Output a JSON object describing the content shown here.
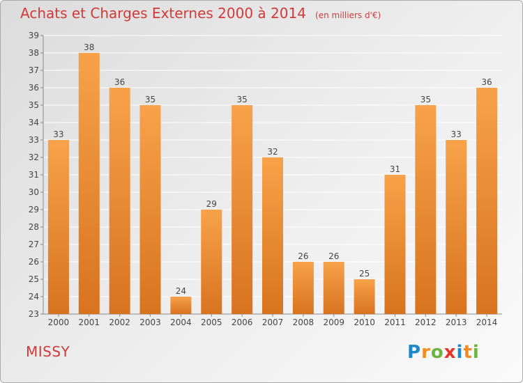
{
  "title": "Achats et Charges Externes 2000 à 2014",
  "subtitle": "(en milliers d'€)",
  "town": "MISSY",
  "logo": {
    "letters": [
      "P",
      "r",
      "o",
      "x",
      "i",
      "t",
      "i"
    ]
  },
  "chart_data": {
    "type": "bar",
    "categories": [
      "2000",
      "2001",
      "2002",
      "2003",
      "2004",
      "2005",
      "2006",
      "2007",
      "2008",
      "2009",
      "2010",
      "2011",
      "2012",
      "2013",
      "2014"
    ],
    "values": [
      33,
      38,
      36,
      35,
      24,
      29,
      35,
      32,
      26,
      26,
      25,
      31,
      35,
      33,
      36
    ],
    "ylim": [
      23,
      39
    ],
    "yticks": [
      23,
      24,
      25,
      26,
      27,
      28,
      29,
      30,
      31,
      32,
      33,
      34,
      35,
      36,
      37,
      38,
      39
    ],
    "grid": true,
    "bar_color_light": "#f7a24a",
    "bar_color_dark": "#d8731f",
    "grid_color": "#ffffff"
  }
}
